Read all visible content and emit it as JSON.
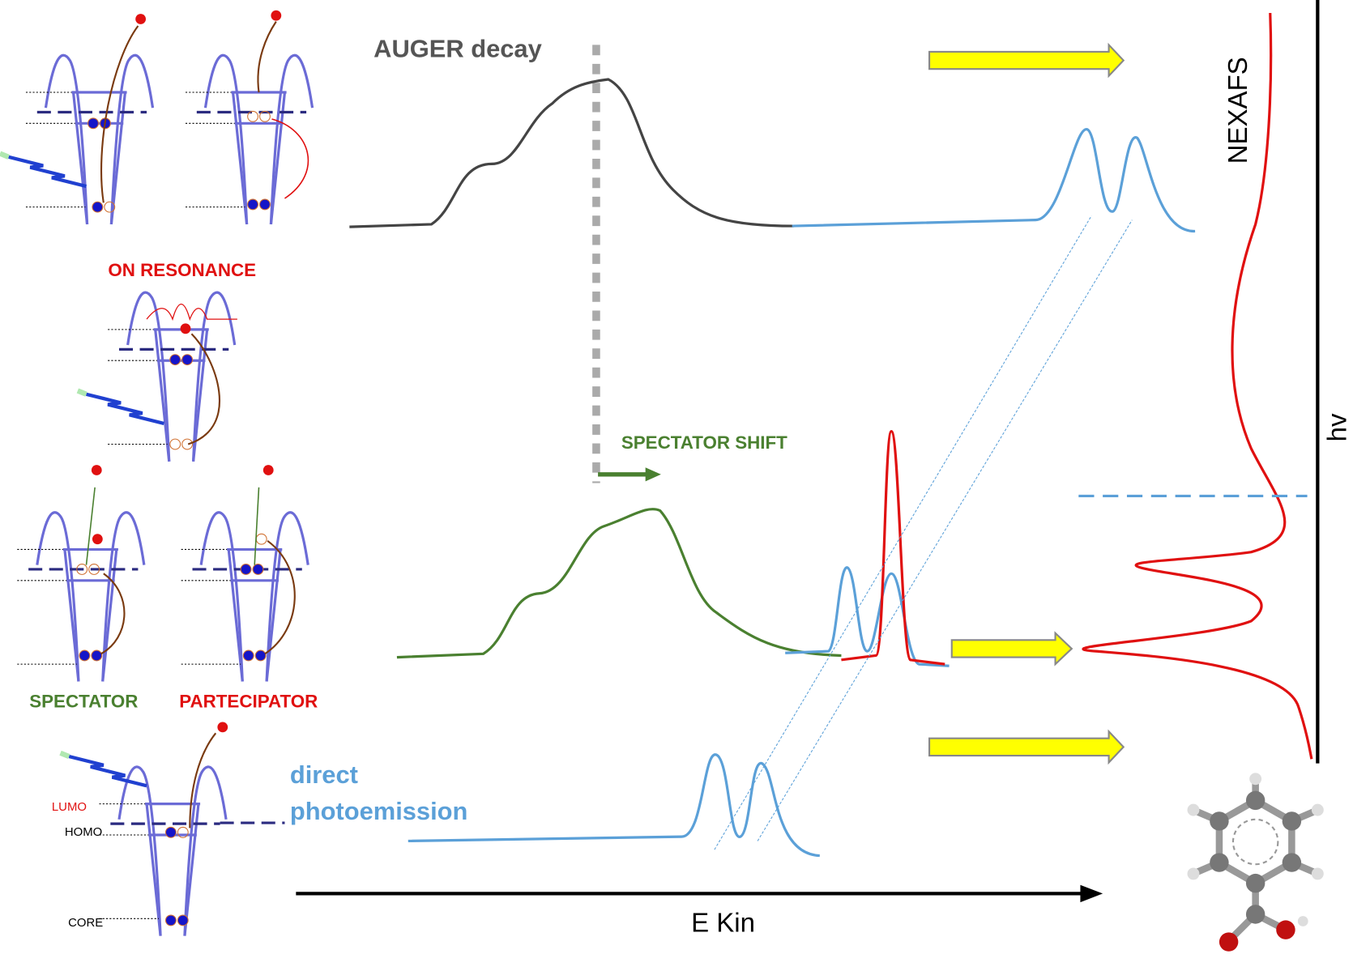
{
  "labels": {
    "auger": "AUGER decay",
    "on_resonance": "ON RESONANCE",
    "spectator_shift": "SPECTATOR SHIFT",
    "spectator": "SPECTATOR",
    "participator": "PARTECIPATOR",
    "direct_1": "direct",
    "direct_2": "photoemission",
    "lumo": "LUMO",
    "homo": "HOMO",
    "core": "CORE",
    "ekin": "E Kin",
    "nexafs": "NEXAFS",
    "hv": "hv"
  }
}
